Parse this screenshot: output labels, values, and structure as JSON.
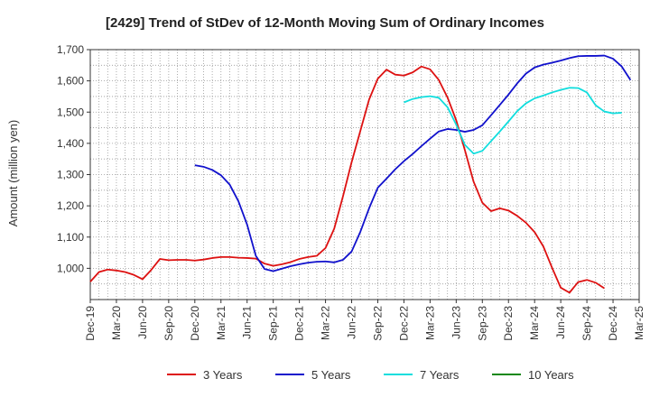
{
  "chart_data": {
    "type": "line",
    "title": "[2429]  Trend of StDev of 12-Month Moving Sum of Ordinary Incomes",
    "ylabel": "Amount (million yen)",
    "xlabel": "",
    "ylim": [
      900,
      1700
    ],
    "y_ticks": [
      1000,
      1100,
      1200,
      1300,
      1400,
      1500,
      1600,
      1700
    ],
    "y_tick_labels": [
      "1,000",
      "1,100",
      "1,200",
      "1,300",
      "1,400",
      "1,500",
      "1,600",
      "1,700"
    ],
    "x_ticks": [
      "Dec-19",
      "Mar-20",
      "Jun-20",
      "Sep-20",
      "Dec-20",
      "Mar-21",
      "Jun-21",
      "Sep-21",
      "Dec-21",
      "Mar-22",
      "Jun-22",
      "Sep-22",
      "Dec-22",
      "Mar-23",
      "Jun-23",
      "Sep-23",
      "Dec-23",
      "Mar-24",
      "Jun-24",
      "Sep-24",
      "Dec-24",
      "Mar-25"
    ],
    "x_range": [
      "Dec-19",
      "Mar-25"
    ],
    "grid": true,
    "legend_position": "bottom",
    "series": [
      {
        "name": "3 Years",
        "color": "#dd1111",
        "start": "Dec-19",
        "values": [
          957,
          988,
          996,
          993,
          988,
          979,
          965,
          995,
          1030,
          1026,
          1027,
          1027,
          1025,
          1028,
          1033,
          1036,
          1036,
          1034,
          1033,
          1031,
          1015,
          1008,
          1013,
          1020,
          1030,
          1036,
          1040,
          1065,
          1127,
          1230,
          1340,
          1440,
          1540,
          1607,
          1636,
          1620,
          1617,
          1627,
          1646,
          1637,
          1603,
          1547,
          1474,
          1378,
          1277,
          1210,
          1183,
          1192,
          1185,
          1168,
          1146,
          1116,
          1070,
          1002,
          938,
          922,
          956,
          963,
          954,
          936
        ]
      },
      {
        "name": "5 Years",
        "color": "#1111cc",
        "start": "Dec-20",
        "values": [
          1330,
          1325,
          1315,
          1298,
          1268,
          1215,
          1140,
          1040,
          998,
          991,
          999,
          1007,
          1013,
          1018,
          1021,
          1022,
          1019,
          1027,
          1054,
          1117,
          1192,
          1258,
          1287,
          1317,
          1343,
          1366,
          1391,
          1415,
          1438,
          1446,
          1443,
          1437,
          1443,
          1458,
          1490,
          1523,
          1556,
          1592,
          1623,
          1643,
          1652,
          1658,
          1665,
          1673,
          1679,
          1680,
          1680,
          1681,
          1671,
          1646,
          1603
        ]
      },
      {
        "name": "7 Years",
        "color": "#11dddd",
        "start": "Dec-22",
        "values": [
          1531,
          1542,
          1548,
          1551,
          1546,
          1516,
          1460,
          1395,
          1367,
          1376,
          1407,
          1438,
          1470,
          1503,
          1528,
          1544,
          1553,
          1563,
          1571,
          1578,
          1577,
          1563,
          1522,
          1502,
          1496,
          1498
        ]
      },
      {
        "name": "10 Years",
        "color": "#118811",
        "start": "Dec-19",
        "values": []
      }
    ]
  }
}
